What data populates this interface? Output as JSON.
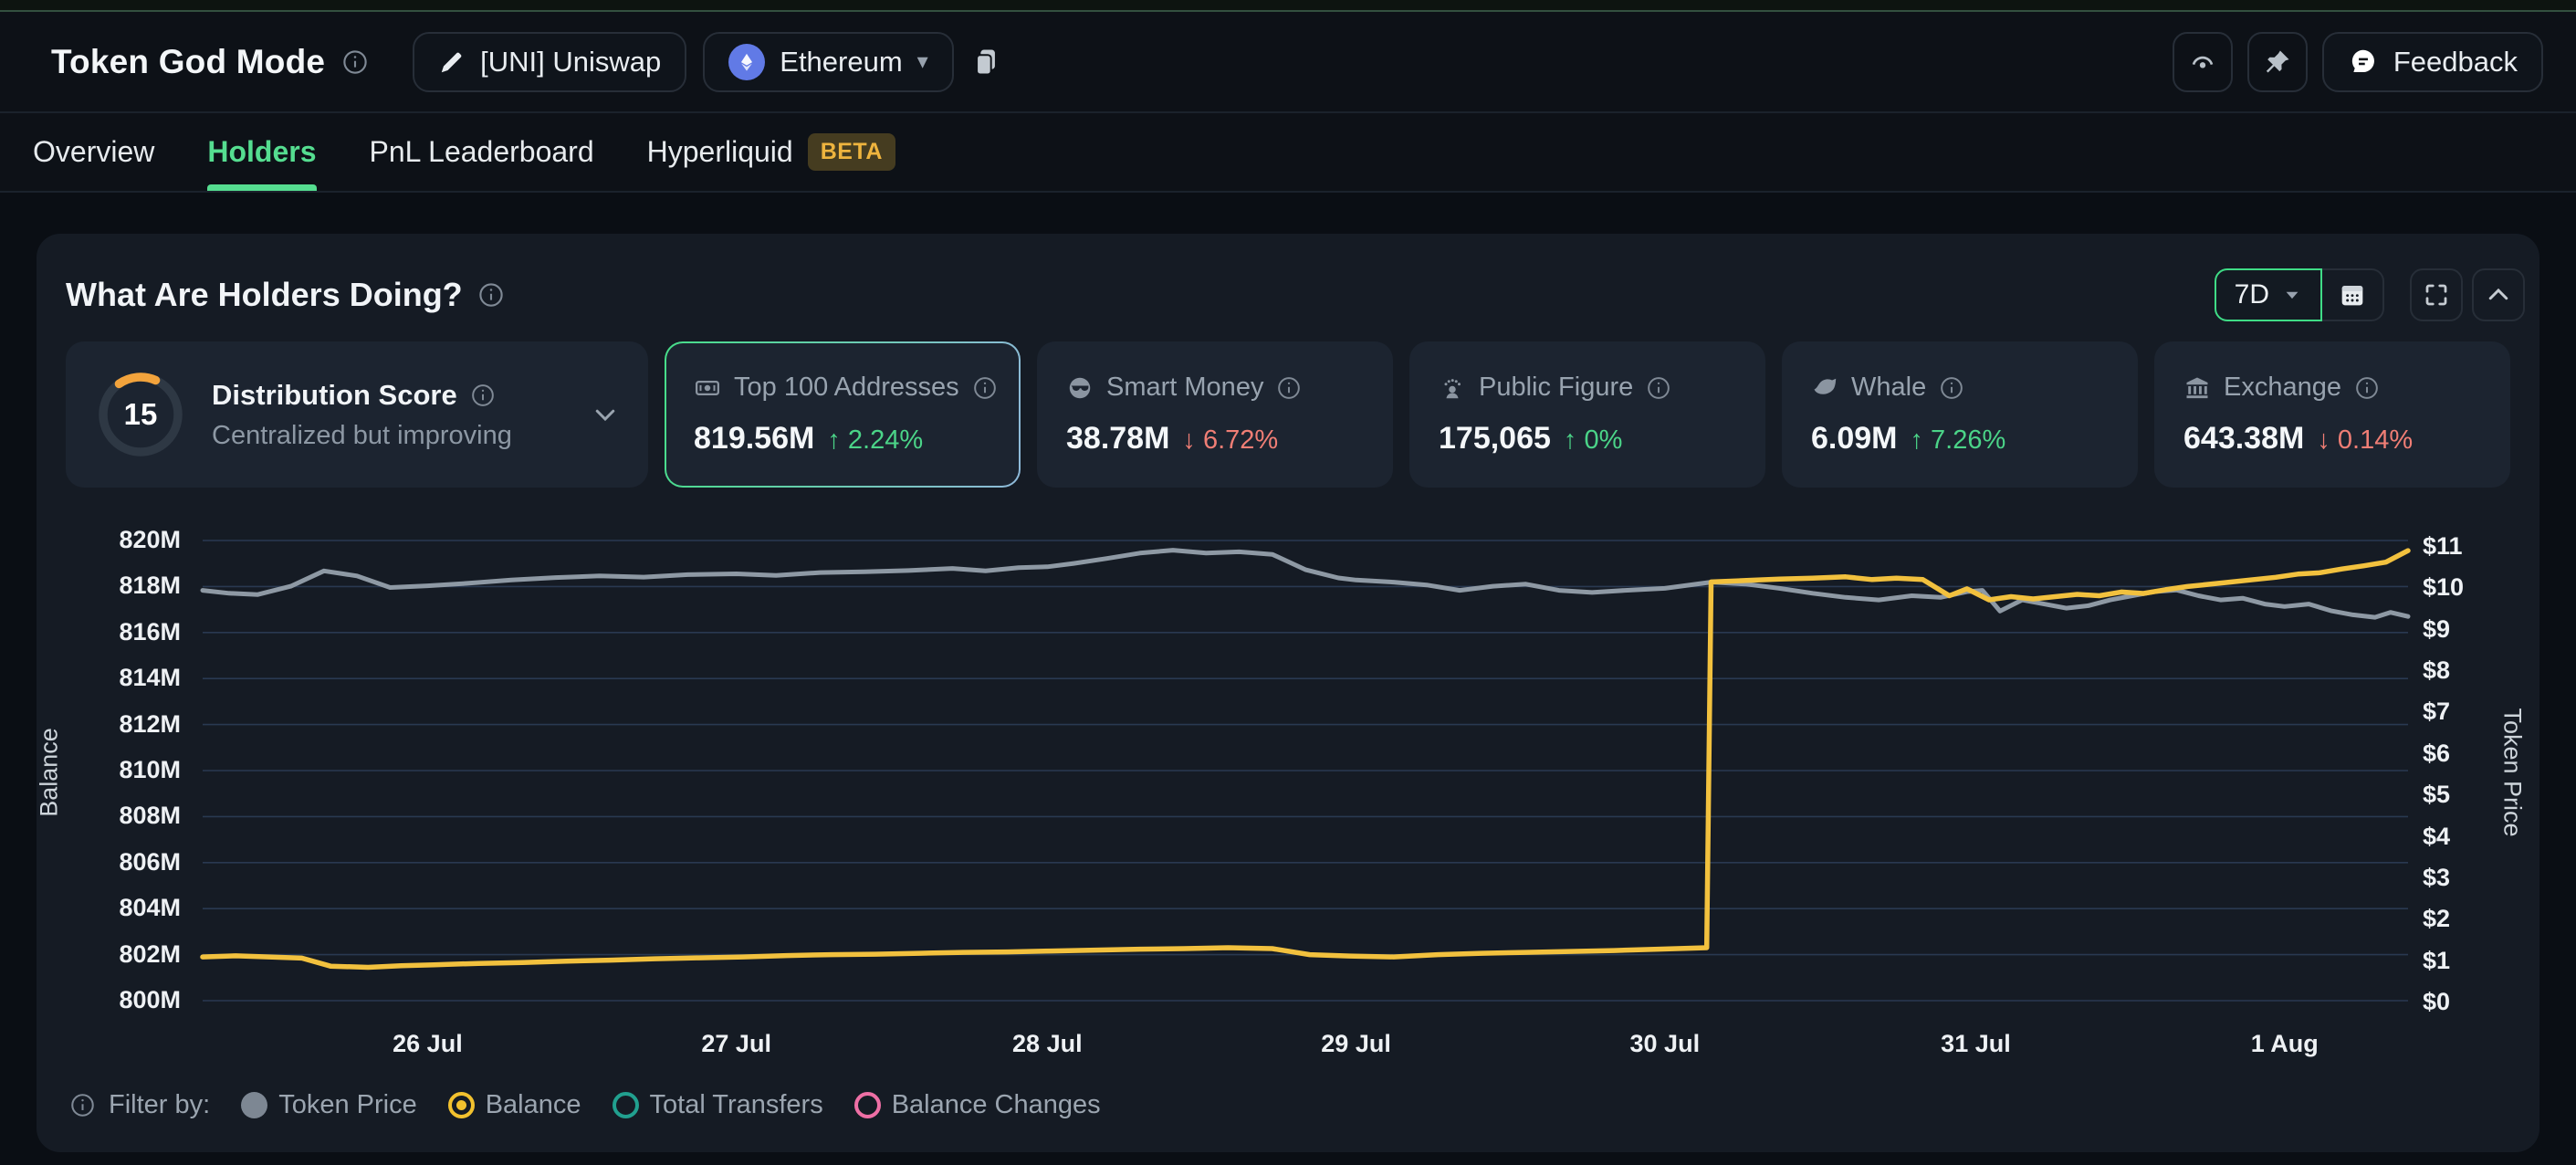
{
  "header": {
    "title": "Token God Mode",
    "token_button": "[UNI] Uniswap",
    "chain_button": "Ethereum",
    "feedback_label": "Feedback"
  },
  "tabs": [
    {
      "label": "Overview",
      "active": false
    },
    {
      "label": "Holders",
      "active": true
    },
    {
      "label": "PnL Leaderboard",
      "active": false
    },
    {
      "label": "Hyperliquid",
      "active": false,
      "badge": "BETA"
    }
  ],
  "panel": {
    "title": "What Are Holders Doing?",
    "timeframe": "7D"
  },
  "stats": {
    "distribution": {
      "label": "Distribution Score",
      "score": "15",
      "description": "Centralized but improving",
      "arc_color": "#f2a33c"
    },
    "cards": [
      {
        "icon": "cash-icon",
        "label": "Top 100 Addresses",
        "value": "819.56M",
        "delta": "2.24%",
        "dir": "up",
        "selected": true
      },
      {
        "icon": "sunglasses-icon",
        "label": "Smart Money",
        "value": "38.78M",
        "delta": "6.72%",
        "dir": "down",
        "selected": false
      },
      {
        "icon": "person-speaking-icon",
        "label": "Public Figure",
        "value": "175,065",
        "delta": "0%",
        "dir": "up",
        "selected": false
      },
      {
        "icon": "whale-icon",
        "label": "Whale",
        "value": "6.09M",
        "delta": "7.26%",
        "dir": "up",
        "selected": false
      },
      {
        "icon": "bank-icon",
        "label": "Exchange",
        "value": "643.38M",
        "delta": "0.14%",
        "dir": "down",
        "selected": false
      }
    ]
  },
  "chart_data": {
    "type": "line",
    "dual_axis": true,
    "grid": true,
    "y_left": {
      "label": "Balance",
      "unit": "M",
      "min": 800,
      "max": 820,
      "ticks": [
        820,
        818,
        816,
        814,
        812,
        810,
        808,
        806,
        804,
        802,
        800
      ]
    },
    "y_right": {
      "label": "Token Price",
      "prefix": "$",
      "min": 0,
      "max": 11,
      "ticks": [
        11,
        10,
        9,
        8,
        7,
        6,
        5,
        4,
        3,
        2,
        1,
        0
      ]
    },
    "x_ticks": [
      {
        "label": "26 Jul",
        "x": 0.102
      },
      {
        "label": "27 Jul",
        "x": 0.242
      },
      {
        "label": "28 Jul",
        "x": 0.383
      },
      {
        "label": "29 Jul",
        "x": 0.523
      },
      {
        "label": "30 Jul",
        "x": 0.663
      },
      {
        "label": "31 Jul",
        "x": 0.804
      },
      {
        "label": "1 Aug",
        "x": 0.944
      }
    ],
    "series": [
      {
        "name": "Token Price",
        "axis": "right",
        "color": "#8e99a4",
        "points": [
          [
            0,
            9.95
          ],
          [
            0.012,
            9.88
          ],
          [
            0.025,
            9.85
          ],
          [
            0.04,
            10.05
          ],
          [
            0.055,
            10.42
          ],
          [
            0.07,
            10.3
          ],
          [
            0.085,
            10.02
          ],
          [
            0.102,
            10.06
          ],
          [
            0.12,
            10.12
          ],
          [
            0.14,
            10.2
          ],
          [
            0.16,
            10.26
          ],
          [
            0.18,
            10.3
          ],
          [
            0.2,
            10.27
          ],
          [
            0.22,
            10.33
          ],
          [
            0.242,
            10.35
          ],
          [
            0.26,
            10.31
          ],
          [
            0.28,
            10.38
          ],
          [
            0.3,
            10.4
          ],
          [
            0.32,
            10.43
          ],
          [
            0.34,
            10.48
          ],
          [
            0.355,
            10.42
          ],
          [
            0.37,
            10.5
          ],
          [
            0.383,
            10.52
          ],
          [
            0.395,
            10.6
          ],
          [
            0.41,
            10.72
          ],
          [
            0.425,
            10.85
          ],
          [
            0.44,
            10.92
          ],
          [
            0.455,
            10.85
          ],
          [
            0.47,
            10.88
          ],
          [
            0.485,
            10.82
          ],
          [
            0.5,
            10.45
          ],
          [
            0.515,
            10.25
          ],
          [
            0.523,
            10.2
          ],
          [
            0.54,
            10.15
          ],
          [
            0.555,
            10.08
          ],
          [
            0.57,
            9.95
          ],
          [
            0.585,
            10.05
          ],
          [
            0.6,
            10.1
          ],
          [
            0.615,
            9.95
          ],
          [
            0.63,
            9.9
          ],
          [
            0.645,
            9.95
          ],
          [
            0.663,
            10.0
          ],
          [
            0.684,
            10.15
          ],
          [
            0.7,
            10.1
          ],
          [
            0.715,
            10.0
          ],
          [
            0.73,
            9.88
          ],
          [
            0.745,
            9.78
          ],
          [
            0.76,
            9.72
          ],
          [
            0.775,
            9.82
          ],
          [
            0.788,
            9.78
          ],
          [
            0.8,
            9.92
          ],
          [
            0.807,
            9.95
          ],
          [
            0.815,
            9.45
          ],
          [
            0.825,
            9.72
          ],
          [
            0.835,
            9.62
          ],
          [
            0.845,
            9.52
          ],
          [
            0.855,
            9.58
          ],
          [
            0.865,
            9.72
          ],
          [
            0.875,
            9.82
          ],
          [
            0.885,
            9.92
          ],
          [
            0.895,
            9.96
          ],
          [
            0.905,
            9.82
          ],
          [
            0.915,
            9.72
          ],
          [
            0.925,
            9.76
          ],
          [
            0.935,
            9.62
          ],
          [
            0.944,
            9.56
          ],
          [
            0.955,
            9.62
          ],
          [
            0.965,
            9.46
          ],
          [
            0.975,
            9.36
          ],
          [
            0.985,
            9.3
          ],
          [
            0.992,
            9.42
          ],
          [
            1,
            9.32
          ]
        ]
      },
      {
        "name": "Balance",
        "axis": "left",
        "color": "#f2c13e",
        "points": [
          [
            0,
            801.9
          ],
          [
            0.015,
            801.95
          ],
          [
            0.03,
            801.9
          ],
          [
            0.045,
            801.85
          ],
          [
            0.058,
            801.5
          ],
          [
            0.075,
            801.45
          ],
          [
            0.09,
            801.52
          ],
          [
            0.105,
            801.56
          ],
          [
            0.125,
            801.62
          ],
          [
            0.145,
            801.66
          ],
          [
            0.165,
            801.72
          ],
          [
            0.185,
            801.76
          ],
          [
            0.205,
            801.82
          ],
          [
            0.225,
            801.86
          ],
          [
            0.245,
            801.9
          ],
          [
            0.265,
            801.96
          ],
          [
            0.285,
            802.0
          ],
          [
            0.305,
            802.02
          ],
          [
            0.325,
            802.06
          ],
          [
            0.345,
            802.1
          ],
          [
            0.365,
            802.12
          ],
          [
            0.385,
            802.16
          ],
          [
            0.405,
            802.2
          ],
          [
            0.425,
            802.24
          ],
          [
            0.445,
            802.26
          ],
          [
            0.465,
            802.3
          ],
          [
            0.485,
            802.26
          ],
          [
            0.502,
            802.0
          ],
          [
            0.52,
            801.94
          ],
          [
            0.54,
            801.9
          ],
          [
            0.56,
            802.0
          ],
          [
            0.58,
            802.06
          ],
          [
            0.6,
            802.1
          ],
          [
            0.62,
            802.14
          ],
          [
            0.64,
            802.18
          ],
          [
            0.66,
            802.24
          ],
          [
            0.682,
            802.3
          ],
          [
            0.684,
            818.2
          ],
          [
            0.7,
            818.26
          ],
          [
            0.715,
            818.32
          ],
          [
            0.73,
            818.36
          ],
          [
            0.745,
            818.42
          ],
          [
            0.757,
            818.3
          ],
          [
            0.768,
            818.36
          ],
          [
            0.78,
            818.3
          ],
          [
            0.792,
            817.6
          ],
          [
            0.8,
            817.9
          ],
          [
            0.81,
            817.42
          ],
          [
            0.82,
            817.56
          ],
          [
            0.83,
            817.46
          ],
          [
            0.84,
            817.56
          ],
          [
            0.85,
            817.66
          ],
          [
            0.86,
            817.6
          ],
          [
            0.87,
            817.76
          ],
          [
            0.88,
            817.7
          ],
          [
            0.89,
            817.86
          ],
          [
            0.9,
            818.0
          ],
          [
            0.91,
            818.1
          ],
          [
            0.92,
            818.2
          ],
          [
            0.93,
            818.3
          ],
          [
            0.94,
            818.4
          ],
          [
            0.95,
            818.54
          ],
          [
            0.96,
            818.6
          ],
          [
            0.97,
            818.76
          ],
          [
            0.98,
            818.9
          ],
          [
            0.99,
            819.06
          ],
          [
            1,
            819.56
          ]
        ]
      }
    ]
  },
  "legend": {
    "prefix": "Filter by:",
    "items": [
      {
        "label": "Token Price",
        "color": "#7d8793",
        "style": "filled"
      },
      {
        "label": "Balance",
        "color": "#f2c12e",
        "style": "selected"
      },
      {
        "label": "Total Transfers",
        "color": "#21a08f",
        "style": "ring"
      },
      {
        "label": "Balance Changes",
        "color": "#ee6fa5",
        "style": "ring"
      }
    ]
  }
}
